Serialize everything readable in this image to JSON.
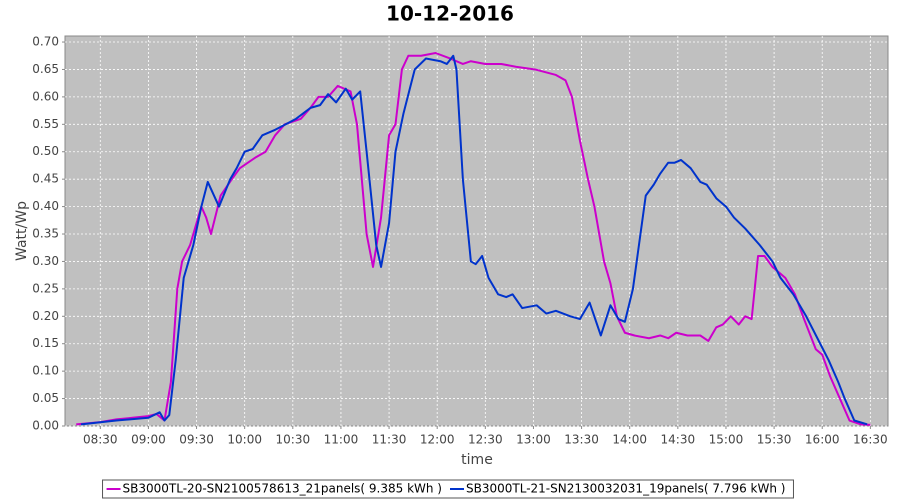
{
  "chart_data": {
    "type": "line",
    "title": "10-12-2016",
    "x_label": "time",
    "y_label": "Watt/Wp",
    "xlim": [
      "08:08",
      "16:41"
    ],
    "xticks": [
      "08:30",
      "09:00",
      "09:30",
      "10:00",
      "10:30",
      "11:00",
      "11:30",
      "12:00",
      "12:30",
      "13:00",
      "13:30",
      "14:00",
      "14:30",
      "15:00",
      "15:30",
      "16:00",
      "16:30"
    ],
    "ylim": [
      0,
      0.711
    ],
    "yticks": [
      {
        "value": 0,
        "label": "0.00"
      },
      0.05,
      {
        "value": 0.1,
        "label": "0.10"
      },
      0.15,
      {
        "value": 0.2,
        "label": "0.20"
      },
      0.25,
      {
        "value": 0.3,
        "label": "0.30"
      },
      0.35,
      {
        "value": 0.4,
        "label": "0.40"
      },
      0.45,
      {
        "value": 0.5,
        "label": "0.50"
      },
      0.55,
      {
        "value": 0.6,
        "label": "0.60"
      },
      0.65,
      {
        "value": 0.7,
        "label": "0.70"
      }
    ],
    "grid": true,
    "legend": "bottom",
    "series": [
      {
        "name": "SB3000TL-20-SN2100578613_21panels( 9.385 kWh )",
        "color": "#cc00cc",
        "x": [
          "08:15",
          "08:30",
          "08:40",
          "08:50",
          "09:00",
          "09:05",
          "09:10",
          "09:14",
          "09:18",
          "09:21",
          "09:26",
          "09:30",
          "09:33",
          "09:36",
          "09:39",
          "09:45",
          "09:52",
          "09:57",
          "10:07",
          "10:13",
          "10:19",
          "10:25",
          "10:35",
          "10:41",
          "10:46",
          "10:52",
          "10:58",
          "11:06",
          "11:10",
          "11:16",
          "11:20",
          "11:25",
          "11:30",
          "11:34",
          "11:38",
          "11:42",
          "11:50",
          "11:59",
          "12:08",
          "12:16",
          "12:21",
          "12:30",
          "12:40",
          "12:49",
          "13:01",
          "13:14",
          "13:20",
          "13:24",
          "13:29",
          "13:34",
          "13:38",
          "13:44",
          "13:48",
          "13:52",
          "13:57",
          "14:03",
          "14:12",
          "14:19",
          "14:24",
          "14:29",
          "14:36",
          "14:44",
          "14:49",
          "14:54",
          "14:58",
          "15:03",
          "15:08",
          "15:12",
          "15:16",
          "15:20",
          "15:24",
          "15:29",
          "15:37",
          "15:43",
          "15:48",
          "15:56",
          "16:00",
          "16:05",
          "16:11",
          "16:17",
          "16:24",
          "16:30"
        ],
        "values": [
          0.003,
          0.007,
          0.012,
          0.015,
          0.018,
          0.022,
          0.01,
          0.08,
          0.25,
          0.3,
          0.33,
          0.37,
          0.4,
          0.38,
          0.35,
          0.42,
          0.45,
          0.47,
          0.49,
          0.5,
          0.53,
          0.55,
          0.56,
          0.58,
          0.6,
          0.6,
          0.62,
          0.61,
          0.55,
          0.35,
          0.29,
          0.38,
          0.53,
          0.55,
          0.65,
          0.675,
          0.675,
          0.68,
          0.67,
          0.66,
          0.665,
          0.66,
          0.66,
          0.655,
          0.65,
          0.64,
          0.63,
          0.6,
          0.52,
          0.45,
          0.4,
          0.3,
          0.26,
          0.2,
          0.17,
          0.165,
          0.16,
          0.165,
          0.16,
          0.17,
          0.165,
          0.165,
          0.155,
          0.18,
          0.185,
          0.2,
          0.185,
          0.2,
          0.195,
          0.31,
          0.31,
          0.29,
          0.27,
          0.24,
          0.2,
          0.14,
          0.13,
          0.09,
          0.05,
          0.01,
          0.003,
          0.002
        ]
      },
      {
        "name": "SB3000TL-21-SN2130032031_19panels( 7.796 kWh )",
        "color": "#0033cc",
        "x": [
          "08:18",
          "08:40",
          "09:00",
          "09:07",
          "09:10",
          "09:13",
          "09:17",
          "09:22",
          "09:28",
          "09:33",
          "09:37",
          "09:44",
          "09:51",
          "09:55",
          "10:00",
          "10:05",
          "10:11",
          "10:19",
          "10:32",
          "10:41",
          "10:47",
          "10:52",
          "10:57",
          "11:03",
          "11:07",
          "11:12",
          "11:16",
          "11:22",
          "11:25",
          "11:30",
          "11:34",
          "11:39",
          "11:46",
          "11:53",
          "12:02",
          "12:06",
          "12:10",
          "12:12",
          "12:16",
          "12:21",
          "12:24",
          "12:28",
          "12:32",
          "12:38",
          "12:43",
          "12:47",
          "12:53",
          "13:02",
          "13:08",
          "13:14",
          "13:23",
          "13:29",
          "13:35",
          "13:42",
          "13:48",
          "13:53",
          "13:57",
          "14:02",
          "14:10",
          "14:15",
          "14:19",
          "14:24",
          "14:28",
          "14:32",
          "14:38",
          "14:44",
          "14:48",
          "14:54",
          "15:00",
          "15:05",
          "15:12",
          "15:21",
          "15:29",
          "15:34",
          "15:42",
          "15:50",
          "15:57",
          "16:04",
          "16:10",
          "16:14",
          "16:20",
          "16:28"
        ],
        "values": [
          0.003,
          0.01,
          0.015,
          0.025,
          0.01,
          0.02,
          0.12,
          0.27,
          0.33,
          0.4,
          0.445,
          0.4,
          0.45,
          0.47,
          0.5,
          0.505,
          0.53,
          0.54,
          0.56,
          0.58,
          0.585,
          0.605,
          0.59,
          0.615,
          0.595,
          0.61,
          0.5,
          0.33,
          0.29,
          0.37,
          0.5,
          0.57,
          0.65,
          0.67,
          0.665,
          0.66,
          0.675,
          0.65,
          0.45,
          0.3,
          0.295,
          0.31,
          0.27,
          0.24,
          0.235,
          0.24,
          0.215,
          0.22,
          0.205,
          0.21,
          0.2,
          0.195,
          0.225,
          0.165,
          0.22,
          0.195,
          0.19,
          0.25,
          0.42,
          0.44,
          0.46,
          0.48,
          0.48,
          0.485,
          0.47,
          0.445,
          0.44,
          0.415,
          0.4,
          0.38,
          0.36,
          0.33,
          0.3,
          0.27,
          0.24,
          0.2,
          0.16,
          0.12,
          0.08,
          0.05,
          0.01,
          0.003
        ]
      }
    ]
  }
}
